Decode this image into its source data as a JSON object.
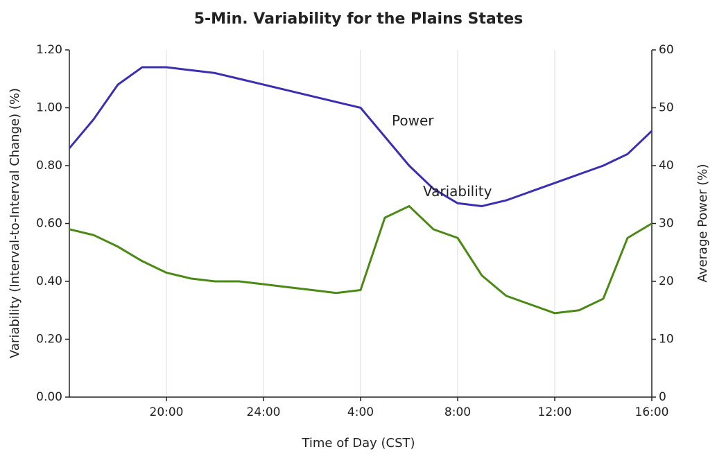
{
  "chart_data": {
    "type": "line",
    "title": "5-Min. Variability for the Plains States",
    "x_label": "Time of Day (CST)",
    "y_label": "Variability (Interval-to-Interval Change) (%)",
    "y2_label": "Average Power (%)",
    "annotations": [
      "Power",
      "Variability"
    ],
    "x": [
      16,
      17,
      18,
      19,
      20,
      21,
      22,
      23,
      24,
      25,
      26,
      27,
      28,
      29,
      30,
      31,
      32,
      33,
      34,
      35,
      36,
      37,
      38,
      39,
      40
    ],
    "xlim": [
      16,
      40
    ],
    "xticks": [
      {
        "value": 20,
        "label": "20:00"
      },
      {
        "value": 24,
        "label": "24:00"
      },
      {
        "value": 28,
        "label": "4:00"
      },
      {
        "value": 32,
        "label": "8:00"
      },
      {
        "value": 36,
        "label": "12:00"
      },
      {
        "value": 40,
        "label": "16:00"
      }
    ],
    "ylim": [
      0,
      1.2
    ],
    "yticks": [
      {
        "value": 0,
        "label": "0.00"
      },
      {
        "value": 0.2,
        "label": "0.20"
      },
      {
        "value": 0.4,
        "label": "0.40"
      },
      {
        "value": 0.6,
        "label": "0.60"
      },
      {
        "value": 0.8,
        "label": "0.80"
      },
      {
        "value": 1,
        "label": "1.00"
      },
      {
        "value": 1.2,
        "label": "1.20"
      }
    ],
    "y2lim": [
      0,
      60
    ],
    "y2ticks": [
      0,
      10,
      20,
      30,
      40,
      50,
      60
    ],
    "grid": true,
    "series": [
      {
        "name": "Variability",
        "color": "#4a8a14",
        "axis": "y",
        "values": [
          0.58,
          0.56,
          0.52,
          0.47,
          0.43,
          0.41,
          0.4,
          0.4,
          0.39,
          0.38,
          0.37,
          0.36,
          0.37,
          0.62,
          0.66,
          0.58,
          0.55,
          0.42,
          0.35,
          0.32,
          0.29,
          0.3,
          0.34,
          0.55,
          0.6
        ]
      },
      {
        "name": "Power",
        "color": "#3a2fb0",
        "axis": "y2",
        "values": [
          43,
          48,
          54,
          57,
          57,
          56.5,
          56,
          55,
          54,
          53,
          52,
          51,
          50,
          45,
          40,
          36,
          33.5,
          33,
          34,
          35.5,
          37,
          38.5,
          40,
          42,
          46
        ]
      }
    ]
  }
}
